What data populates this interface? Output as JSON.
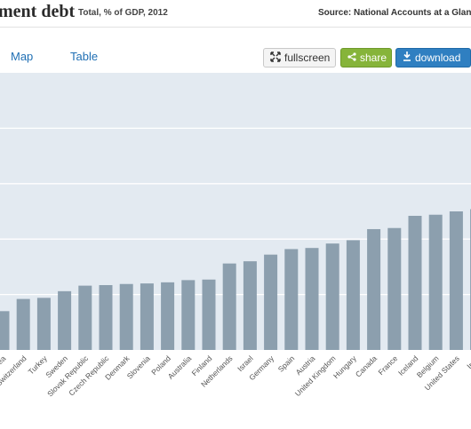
{
  "header": {
    "title": "ment debt",
    "subtitle": "Total, % of GDP, 2012",
    "source": "Source: National Accounts at a Glance:"
  },
  "toolbar": {
    "tab_map": "Map",
    "tab_table": "Table",
    "fullscreen_label": "fullscreen",
    "share_label": "share",
    "download_label": "download"
  },
  "colors": {
    "bar": "#8c9fae",
    "plot_bg": "#e3eaf1",
    "share": "#86b43a",
    "download": "#2f7fc1"
  },
  "chart_data": {
    "type": "bar",
    "title": "",
    "xlabel": "",
    "ylabel": "",
    "categories": [
      "Korea",
      "Switzerland",
      "Turkey",
      "Sweden",
      "Slovak Republic",
      "Czech Republic",
      "Denmark",
      "Slovenia",
      "Poland",
      "Australia",
      "Finland",
      "Netherlands",
      "Israel",
      "Germany",
      "Spain",
      "Austria",
      "United Kingdom",
      "Hungary",
      "Canada",
      "France",
      "Iceland",
      "Belgium",
      "United States",
      "Ireland"
    ],
    "category_labels": [
      "rea",
      "Switzerland",
      "Turkey",
      "Sweden",
      "Slovak Republic",
      "Czech Republic",
      "Denmark",
      "Slovenia",
      "Poland",
      "Australia",
      "Finland",
      "Netherlands",
      "Israel",
      "Germany",
      "Spain",
      "Austria",
      "United Kingdom",
      "Hungary",
      "Canada",
      "France",
      "Iceland",
      "Belgium",
      "United States",
      "Irela"
    ],
    "values": [
      35,
      46,
      47,
      53,
      58,
      58.5,
      59.5,
      60,
      61,
      63,
      63.5,
      78,
      80,
      86,
      91,
      92,
      96,
      99,
      109,
      110,
      121,
      122,
      125,
      127
    ],
    "ylim": [
      0,
      250
    ],
    "y_gridlines": [
      0,
      50,
      100,
      150,
      200,
      250
    ],
    "grid": true,
    "legend": "none"
  }
}
